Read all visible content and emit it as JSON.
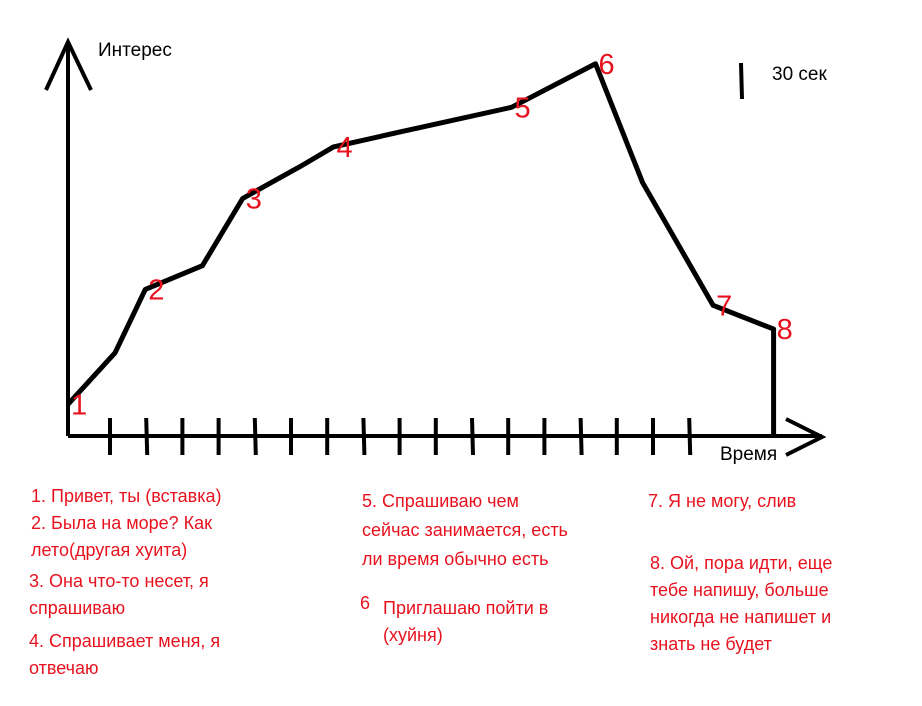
{
  "chart_data": {
    "type": "line",
    "ylabel": "Интерес",
    "xlabel": "Время",
    "scale_label": "30 сек",
    "line_color": "#000000",
    "label_color": "#e8121e",
    "ticks_count": 17,
    "x_unit": "30-second intervals",
    "ylim": [
      0,
      100
    ],
    "points": [
      {
        "label": "1",
        "x": 0.0,
        "y": 8
      },
      {
        "label": "",
        "x": 1.4,
        "y": 21
      },
      {
        "label": "2",
        "x": 2.3,
        "y": 37
      },
      {
        "label": "",
        "x": 4.0,
        "y": 43
      },
      {
        "label": "3",
        "x": 5.2,
        "y": 60
      },
      {
        "label": "",
        "x": 6.9,
        "y": 68
      },
      {
        "label": "4",
        "x": 7.9,
        "y": 73
      },
      {
        "label": "",
        "x": 10.0,
        "y": 77
      },
      {
        "label": "5",
        "x": 13.2,
        "y": 83
      },
      {
        "label": "6",
        "x": 15.7,
        "y": 94
      },
      {
        "label": "",
        "x": 17.1,
        "y": 64
      },
      {
        "label": "7",
        "x": 19.2,
        "y": 33
      },
      {
        "label": "8",
        "x": 21.0,
        "y": 27
      },
      {
        "label": "",
        "x": 21.0,
        "y": 0
      }
    ]
  },
  "notes": [
    {
      "id": "1",
      "lines": [
        "1. Привет, ты (вставка)"
      ]
    },
    {
      "id": "2",
      "lines": [
        "2. Была на море? Как",
        "лето(другая хуита)"
      ]
    },
    {
      "id": "3",
      "lines": [
        "3. Она что-то несет, я",
        "спрашиваю"
      ]
    },
    {
      "id": "4",
      "lines": [
        "4. Спрашивает меня, я",
        "отвечаю"
      ]
    },
    {
      "id": "5",
      "lines": [
        "5. Спрашиваю чем",
        "сейчас занимается, есть",
        "ли время  обычно есть"
      ]
    },
    {
      "id": "6",
      "num": "6",
      "lines": [
        "Приглашаю пойти в",
        "(хуйня)"
      ]
    },
    {
      "id": "7",
      "lines": [
        "7. Я не могу, слив"
      ]
    },
    {
      "id": "8",
      "lines": [
        "8. Ой, пора идти, еще",
        "тебе напишу, больше",
        "никогда не напишет и",
        "знать не будет"
      ]
    }
  ]
}
